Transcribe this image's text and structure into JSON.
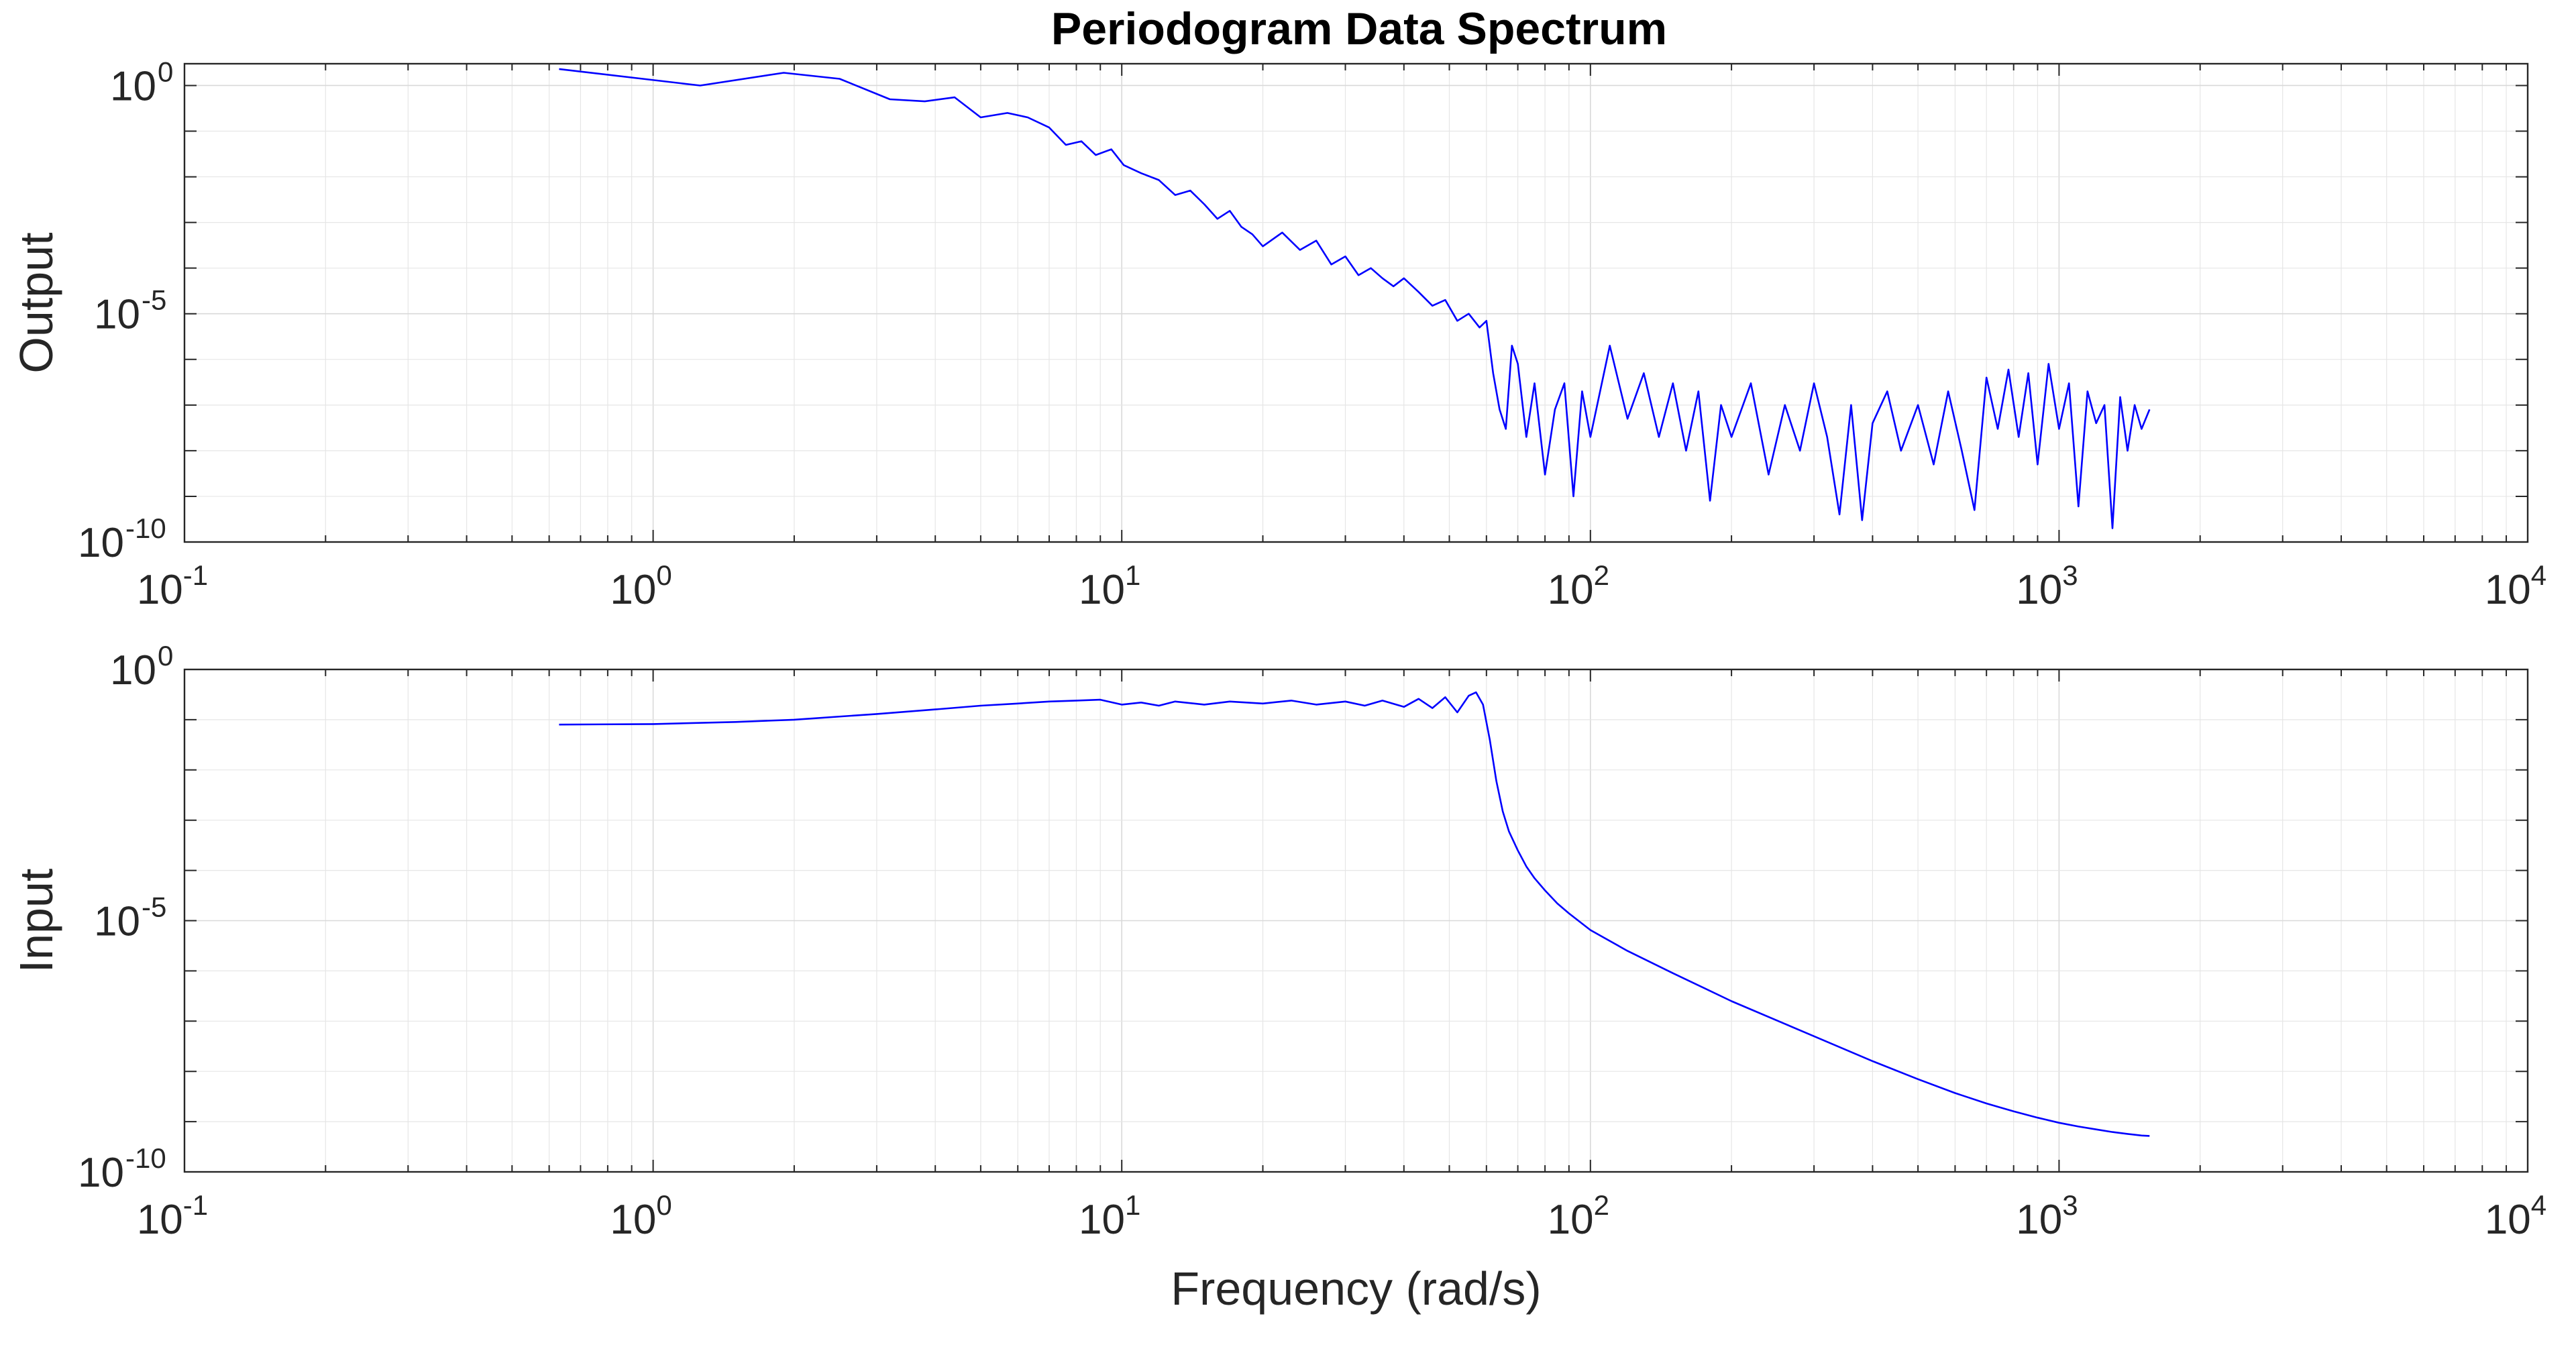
{
  "figure_title": "Periodogram Data Spectrum",
  "chart_data": [
    {
      "type": "line",
      "title": "Periodogram Data Spectrum",
      "ylabel": "Output",
      "xlabel": "",
      "xscale": "log",
      "yscale": "log",
      "xlim": [
        0.1,
        10000
      ],
      "ylim": [
        1e-10,
        3
      ],
      "grid": true,
      "x_tick_labels": [
        {
          "base": "10",
          "exp": "-1"
        },
        {
          "base": "10",
          "exp": "0"
        },
        {
          "base": "10",
          "exp": "1"
        },
        {
          "base": "10",
          "exp": "2"
        },
        {
          "base": "10",
          "exp": "3"
        },
        {
          "base": "10",
          "exp": "4"
        }
      ],
      "y_tick_labels": [
        {
          "base": "10",
          "exp": "0"
        },
        {
          "base": "10",
          "exp": "-5"
        },
        {
          "base": "10",
          "exp": "-10"
        }
      ],
      "series": [
        {
          "color": "#0000ff",
          "x": [
            0.63,
            1.26,
            1.9,
            2.5,
            3.2,
            3.8,
            4.4,
            5.0,
            5.7,
            6.3,
            7.0,
            7.6,
            8.2,
            8.8,
            9.5,
            10.1,
            11,
            12,
            13,
            14,
            15,
            16,
            17,
            18,
            19,
            20,
            22,
            24,
            26,
            28,
            30,
            32,
            34,
            36,
            38,
            40,
            43,
            46,
            49,
            52,
            55,
            58,
            60,
            62,
            64,
            66,
            68,
            70,
            73,
            76,
            80,
            84,
            88,
            92,
            96,
            100,
            110,
            120,
            130,
            140,
            150,
            160,
            170,
            180,
            190,
            200,
            220,
            240,
            260,
            280,
            300,
            320,
            340,
            360,
            380,
            400,
            430,
            460,
            500,
            540,
            580,
            620,
            660,
            700,
            740,
            780,
            820,
            860,
            900,
            950,
            1000,
            1050,
            1100,
            1150,
            1200,
            1250,
            1300,
            1350,
            1400,
            1450,
            1500,
            1560
          ],
          "values": [
            2.3,
            1.0,
            1.9,
            1.4,
            0.5,
            0.45,
            0.55,
            0.2,
            0.25,
            0.2,
            0.12,
            0.05,
            0.06,
            0.03,
            0.04,
            0.018,
            0.012,
            0.0085,
            0.004,
            0.005,
            0.0025,
            0.0012,
            0.0018,
            0.0008,
            0.00055,
            0.0003,
            0.0006,
            0.00025,
            0.0004,
            0.00012,
            0.00018,
            7e-05,
            0.0001,
            6e-05,
            4e-05,
            6e-05,
            3e-05,
            1.5e-05,
            2e-05,
            7e-06,
            1e-05,
            5e-06,
            7e-06,
            5e-07,
            8e-08,
            3e-08,
            2e-06,
            8e-07,
            2e-08,
            3e-07,
            3e-09,
            8e-08,
            3e-07,
            1e-09,
            2e-07,
            2e-08,
            2e-06,
            5e-08,
            5e-07,
            2e-08,
            3e-07,
            1e-08,
            2e-07,
            8e-10,
            1e-07,
            2e-08,
            3e-07,
            3e-09,
            1e-07,
            1e-08,
            3e-07,
            2e-08,
            4e-10,
            1e-07,
            3e-10,
            4e-08,
            2e-07,
            1e-08,
            1e-07,
            5e-09,
            2e-07,
            1e-08,
            5e-10,
            4e-07,
            3e-08,
            6e-07,
            2e-08,
            5e-07,
            5e-09,
            8e-07,
            3e-08,
            3e-07,
            6e-10,
            2e-07,
            4e-08,
            1e-07,
            2e-10,
            1.5e-07,
            1e-08,
            1e-07,
            3e-08,
            8e-08
          ]
        }
      ]
    },
    {
      "type": "line",
      "title": "",
      "ylabel": "Input",
      "xlabel": "Frequency (rad/s)",
      "xscale": "log",
      "yscale": "log",
      "xlim": [
        0.1,
        10000
      ],
      "ylim": [
        1e-10,
        1
      ],
      "grid": true,
      "x_tick_labels": [
        {
          "base": "10",
          "exp": "-1"
        },
        {
          "base": "10",
          "exp": "0"
        },
        {
          "base": "10",
          "exp": "1"
        },
        {
          "base": "10",
          "exp": "2"
        },
        {
          "base": "10",
          "exp": "3"
        },
        {
          "base": "10",
          "exp": "4"
        }
      ],
      "y_tick_labels": [
        {
          "base": "10",
          "exp": "0"
        },
        {
          "base": "10",
          "exp": "-5"
        },
        {
          "base": "10",
          "exp": "-10"
        }
      ],
      "series": [
        {
          "color": "#0000ff",
          "x": [
            0.63,
            1,
            1.5,
            2,
            3,
            4,
            5,
            6,
            7,
            8,
            9,
            10,
            11,
            12,
            13,
            15,
            17,
            20,
            23,
            26,
            30,
            33,
            36,
            40,
            43,
            46,
            49,
            52,
            55,
            57,
            59,
            61,
            63,
            65,
            67,
            70,
            73,
            76,
            80,
            85,
            90,
            100,
            120,
            150,
            200,
            300,
            400,
            500,
            600,
            700,
            800,
            900,
            1000,
            1100,
            1200,
            1300,
            1400,
            1500,
            1560
          ],
          "values": [
            0.08,
            0.082,
            0.09,
            0.1,
            0.13,
            0.16,
            0.19,
            0.21,
            0.23,
            0.24,
            0.25,
            0.2,
            0.22,
            0.19,
            0.23,
            0.2,
            0.23,
            0.21,
            0.24,
            0.2,
            0.23,
            0.19,
            0.24,
            0.18,
            0.26,
            0.17,
            0.28,
            0.14,
            0.3,
            0.35,
            0.2,
            0.04,
            0.006,
            0.0015,
            0.0006,
            0.00025,
            0.00012,
            7e-05,
            4e-05,
            2.2e-05,
            1.4e-05,
            6.5e-06,
            2.5e-06,
            9e-07,
            2.5e-07,
            5e-08,
            1.6e-08,
            7e-09,
            3.7e-09,
            2.3e-09,
            1.6e-09,
            1.2e-09,
            9.5e-10,
            8e-10,
            7e-10,
            6.2e-10,
            5.7e-10,
            5.3e-10,
            5.2e-10
          ]
        }
      ]
    }
  ]
}
